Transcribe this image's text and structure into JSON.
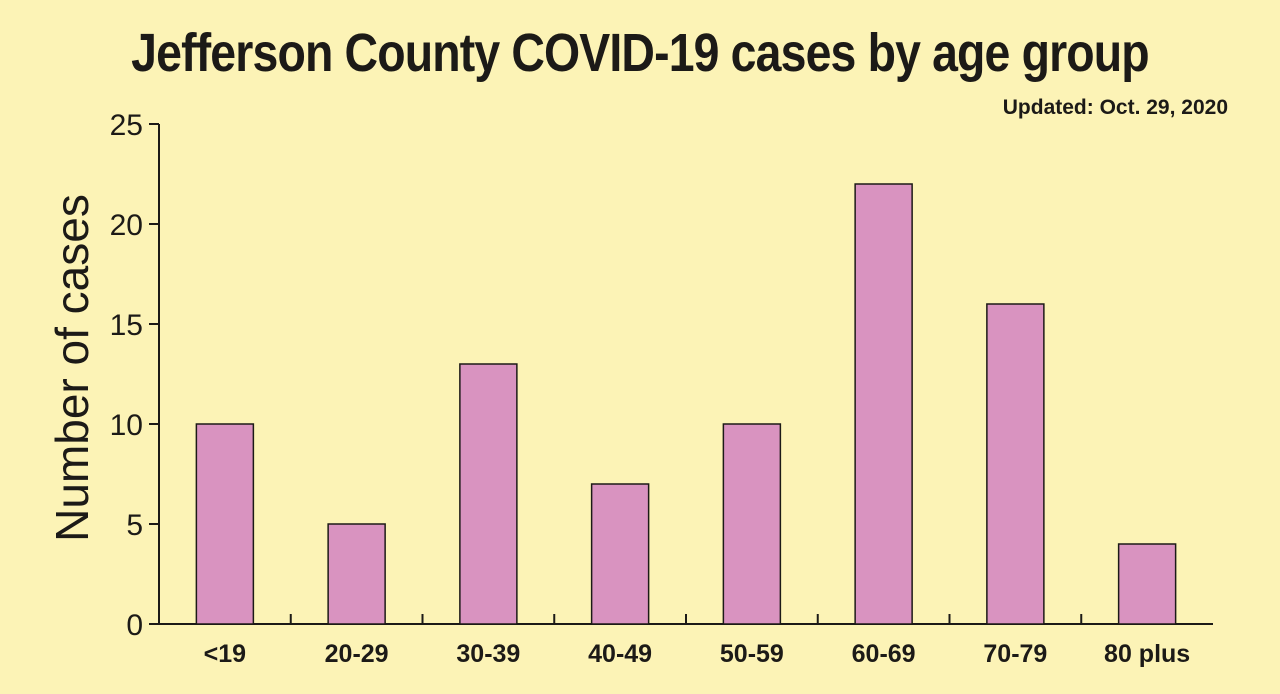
{
  "chart_data": {
    "type": "bar",
    "title": "Jefferson County COVID-19 cases by age group",
    "subtitle": "Updated: Oct. 29, 2020",
    "xlabel": "",
    "ylabel": "Number of cases",
    "categories": [
      "<19",
      "20-29",
      "30-39",
      "40-49",
      "50-59",
      "60-69",
      "70-79",
      "80 plus"
    ],
    "values": [
      10,
      5,
      13,
      7,
      10,
      22,
      16,
      4
    ],
    "ylim": [
      0,
      25
    ],
    "yticks": [
      0,
      5,
      10,
      15,
      20,
      25
    ],
    "grid": false,
    "bar_color": "#d993c0",
    "background_color": "#fcf3b6"
  }
}
